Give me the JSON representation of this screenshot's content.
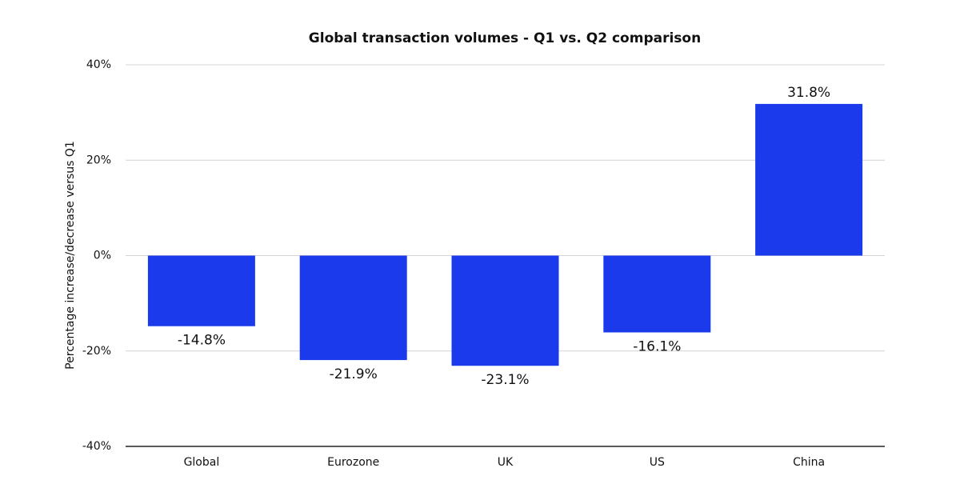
{
  "chart_data": {
    "type": "bar",
    "title": "Global transaction volumes - Q1 vs. Q2 comparison",
    "y_label": "Percentage increase/decrease versus Q1",
    "categories": [
      "Global",
      "Eurozone",
      "UK",
      "US",
      "China"
    ],
    "values": [
      -14.8,
      -21.9,
      -23.1,
      -16.1,
      31.8
    ],
    "value_labels": [
      "-14.8%",
      "-21.9%",
      "-23.1%",
      "-16.1%",
      "31.8%"
    ],
    "color": "#1a3aeb",
    "ylim": [
      -40,
      40
    ],
    "yticks": [
      {
        "value": -40,
        "label": "-40%"
      },
      {
        "value": -20,
        "label": "-20%"
      },
      {
        "value": 0,
        "label": "0%"
      },
      {
        "value": 20,
        "label": "20%"
      },
      {
        "value": 40,
        "label": "40%"
      }
    ],
    "grid": true
  }
}
